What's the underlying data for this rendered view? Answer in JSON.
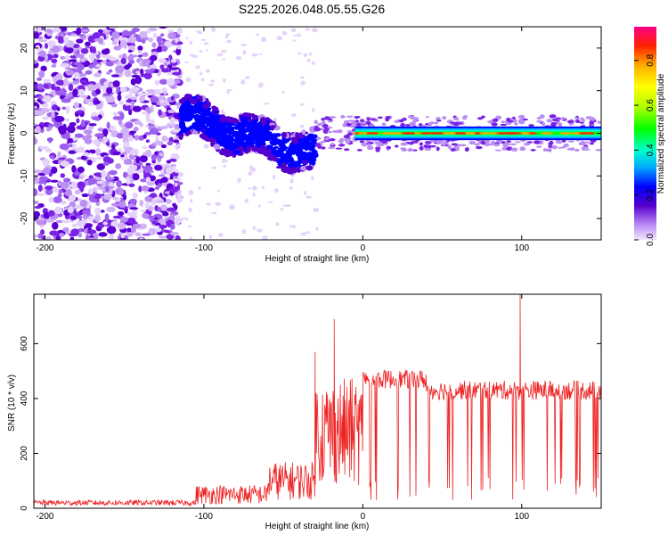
{
  "title": "S225.2026.048.05.55.G26",
  "chart_data": [
    {
      "type": "heatmap",
      "xlabel": "Height of straight line (km)",
      "ylabel": "Frequency (Hz)",
      "xlim": [
        -207,
        150
      ],
      "ylim": [
        -25,
        25
      ],
      "xticks": [
        -200,
        -100,
        0,
        100
      ],
      "yticks": [
        -20,
        -10,
        0,
        10,
        20
      ],
      "colorbar": {
        "label": "Normalized spectral amplitude",
        "range": [
          0,
          0.95
        ],
        "ticks": [
          0.0,
          0.2,
          0.4,
          0.6,
          0.8
        ]
      },
      "regions": [
        {
          "x": [
            -207,
            -115
          ],
          "freq_spread_hz": 25,
          "amplitude": 0.1
        },
        {
          "x": [
            -115,
            -30
          ],
          "freq_center_hz_start": 4,
          "freq_center_hz_end": -5,
          "amplitude": 0.3
        },
        {
          "x": [
            -30,
            150
          ],
          "freq_center_hz": 0,
          "amplitude": 0.85
        }
      ]
    },
    {
      "type": "line",
      "xlabel": "Height of straight line (km)",
      "ylabel": "SNR (10 * v/v)",
      "xlim": [
        -207,
        150
      ],
      "ylim": [
        0,
        780
      ],
      "xticks": [
        -200,
        -100,
        0,
        100
      ],
      "yticks": [
        0,
        200,
        400,
        600
      ],
      "color": "#ee2222",
      "segments": [
        {
          "x": [
            -207,
            -105
          ],
          "snr_mean": 20
        },
        {
          "x": [
            -105,
            -60
          ],
          "snr_mean": 50
        },
        {
          "x": [
            -60,
            -30
          ],
          "snr_mean": 100
        },
        {
          "x": [
            -30,
            0
          ],
          "snr_mean": 280
        },
        {
          "x": [
            0,
            40
          ],
          "snr_mean": 470
        },
        {
          "x": [
            40,
            150
          ],
          "snr_mean": 430
        }
      ],
      "peaks": [
        {
          "x": -30,
          "y": 570
        },
        {
          "x": -18,
          "y": 690
        },
        {
          "x": 99,
          "y": 780
        }
      ]
    }
  ]
}
